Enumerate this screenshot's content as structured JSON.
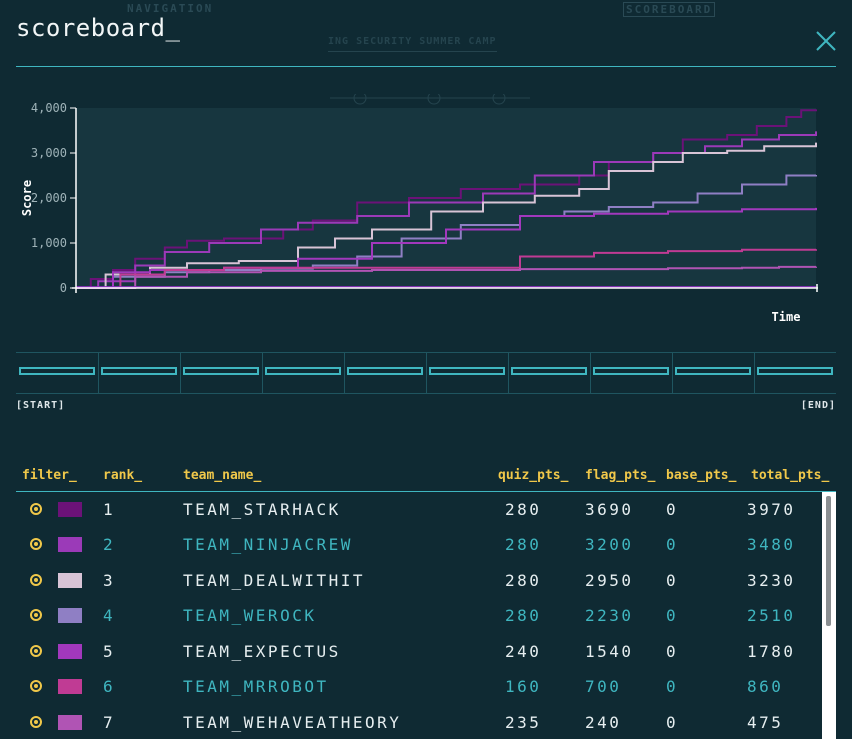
{
  "background": {
    "nav_label": "NAVIGATION",
    "scoreboard_label": "SCOREBOARD",
    "camp_label": "ING SECURITY SUMMER CAMP"
  },
  "modal": {
    "title": "scoreboard_",
    "close_icon": "close-icon"
  },
  "chart_data": {
    "type": "line",
    "xlabel": "Time",
    "ylabel": "Score",
    "ylim": [
      0,
      4000
    ],
    "yticks": [
      "0",
      "1,000",
      "2,000",
      "3,000",
      "4,000"
    ],
    "x_range": [
      0,
      100
    ],
    "series": [
      {
        "color": "#6b1278",
        "x": [
          0,
          2,
          5,
          8,
          12,
          15,
          20,
          28,
          32,
          38,
          45,
          52,
          60,
          68,
          72,
          78,
          82,
          88,
          92,
          96,
          98,
          100
        ],
        "y": [
          0,
          200,
          400,
          650,
          900,
          1050,
          1100,
          1300,
          1500,
          1900,
          2000,
          2200,
          2300,
          2500,
          2800,
          3000,
          3300,
          3400,
          3600,
          3800,
          3950,
          3970
        ]
      },
      {
        "color": "#9b3ab8",
        "x": [
          0,
          3,
          8,
          12,
          18,
          25,
          30,
          38,
          45,
          55,
          62,
          70,
          78,
          85,
          90,
          95,
          100
        ],
        "y": [
          0,
          150,
          500,
          800,
          1000,
          1300,
          1450,
          1600,
          1900,
          2100,
          2500,
          2800,
          3000,
          3150,
          3300,
          3400,
          3480
        ]
      },
      {
        "color": "#d8c4d6",
        "x": [
          0,
          4,
          10,
          15,
          22,
          30,
          35,
          40,
          48,
          55,
          62,
          68,
          72,
          78,
          82,
          88,
          93,
          100
        ],
        "y": [
          0,
          300,
          450,
          550,
          600,
          900,
          1100,
          1300,
          1700,
          1900,
          2050,
          2200,
          2600,
          2800,
          3000,
          3050,
          3150,
          3230
        ]
      },
      {
        "color": "#8f7fc4",
        "x": [
          0,
          5,
          12,
          18,
          25,
          32,
          38,
          44,
          52,
          60,
          66,
          72,
          78,
          84,
          90,
          96,
          100
        ],
        "y": [
          0,
          250,
          350,
          400,
          430,
          500,
          700,
          1100,
          1400,
          1600,
          1700,
          1800,
          1900,
          2100,
          2300,
          2500,
          2510
        ]
      },
      {
        "color": "#a238bd",
        "x": [
          0,
          5,
          10,
          20,
          30,
          40,
          50,
          60,
          70,
          80,
          90,
          100
        ],
        "y": [
          0,
          350,
          400,
          450,
          650,
          1000,
          1300,
          1600,
          1650,
          1700,
          1750,
          1780
        ]
      },
      {
        "color": "#c03b94",
        "x": [
          0,
          6,
          12,
          20,
          40,
          55,
          60,
          70,
          80,
          90,
          100
        ],
        "y": [
          0,
          300,
          400,
          450,
          450,
          450,
          700,
          780,
          820,
          850,
          860
        ]
      },
      {
        "color": "#b054b4",
        "x": [
          0,
          8,
          15,
          25,
          40,
          60,
          80,
          90,
          95,
          100
        ],
        "y": [
          0,
          250,
          350,
          380,
          400,
          420,
          440,
          450,
          470,
          475
        ]
      },
      {
        "color": "#8b2fbf",
        "x": [
          0,
          100
        ],
        "y": [
          20,
          20
        ]
      }
    ]
  },
  "timeline": {
    "start_label": "[START]",
    "end_label": "[END]"
  },
  "table": {
    "headers": [
      "filter_",
      "rank_",
      "team_name_",
      "quiz_pts_",
      "flag_pts_",
      "base_pts_",
      "total_pts_"
    ],
    "rows": [
      {
        "color": "#6b1278",
        "rank": "1",
        "team": "TEAM_STARHACK",
        "quiz": "280",
        "flag": "3690",
        "base": "0",
        "total": "3970"
      },
      {
        "color": "#9b3ab8",
        "rank": "2",
        "team": "TEAM_NINJACREW",
        "quiz": "280",
        "flag": "3200",
        "base": "0",
        "total": "3480"
      },
      {
        "color": "#d8c4d6",
        "rank": "3",
        "team": "TEAM_DEALWITHIT",
        "quiz": "280",
        "flag": "2950",
        "base": "0",
        "total": "3230"
      },
      {
        "color": "#8f7fc4",
        "rank": "4",
        "team": "TEAM_WEROCK",
        "quiz": "280",
        "flag": "2230",
        "base": "0",
        "total": "2510"
      },
      {
        "color": "#a238bd",
        "rank": "5",
        "team": "TEAM_EXPECTUS",
        "quiz": "240",
        "flag": "1540",
        "base": "0",
        "total": "1780"
      },
      {
        "color": "#c03b94",
        "rank": "6",
        "team": "TEAM_MRROBOT",
        "quiz": "160",
        "flag": "700",
        "base": "0",
        "total": "860"
      },
      {
        "color": "#b054b4",
        "rank": "7",
        "team": "TEAM_WEHAVEATHEORY",
        "quiz": "235",
        "flag": "240",
        "base": "0",
        "total": "475"
      }
    ]
  }
}
